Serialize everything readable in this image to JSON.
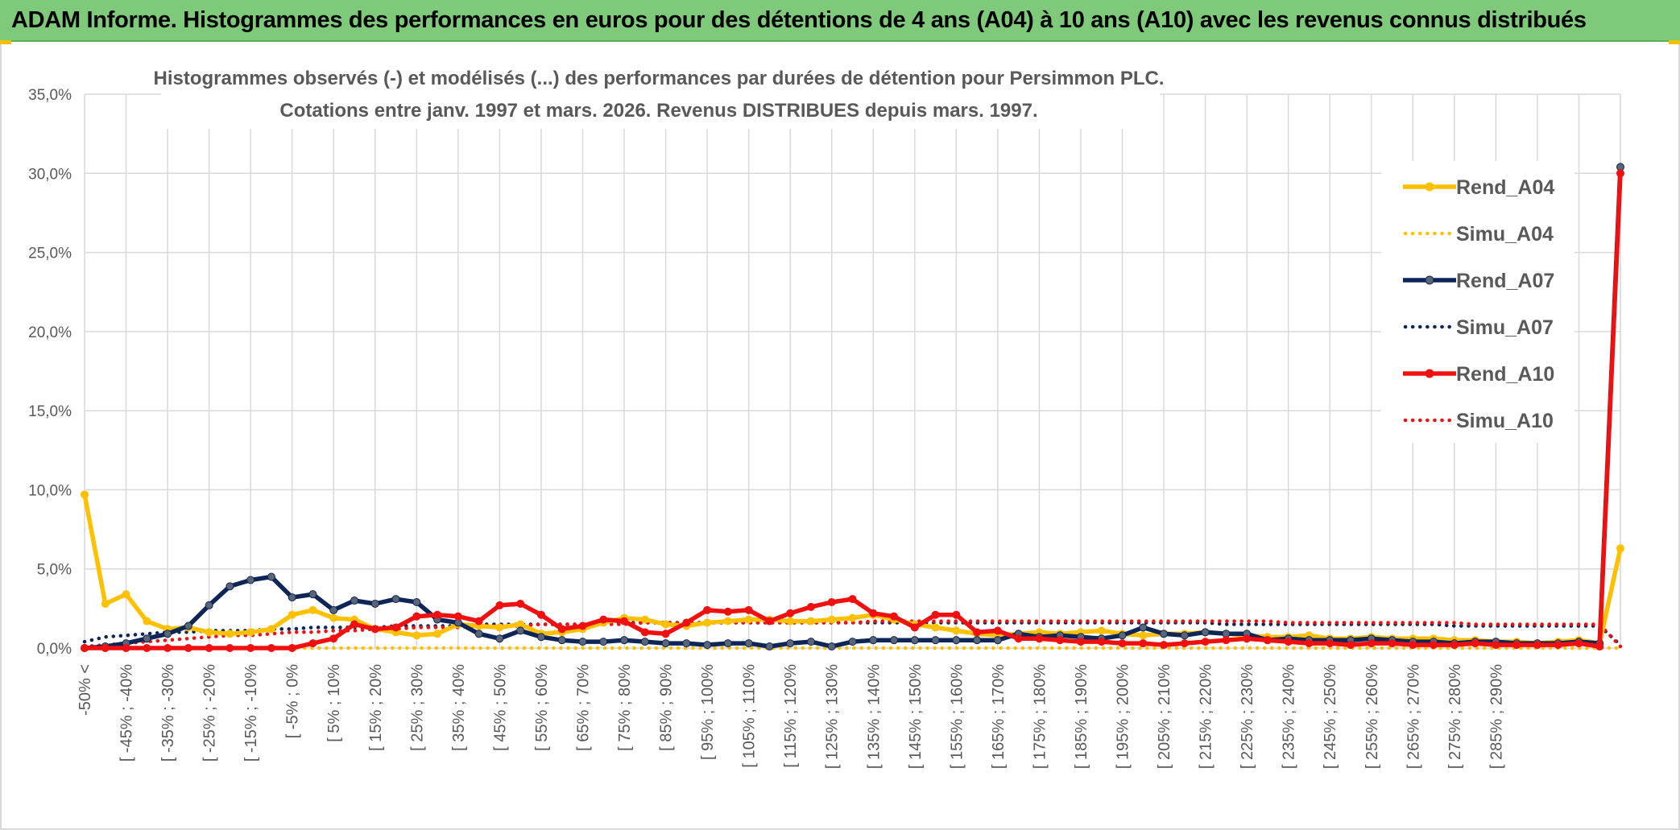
{
  "header": {
    "title": "ADAM Informe. Histogrammes des performances en euros pour des détentions de 4 ans (A04) à 10 ans (A10) avec les revenus connus distribués"
  },
  "colors": {
    "header_bg": "#7ec97a",
    "A04": "#ffc000",
    "A07": "#0d2557",
    "A07_marker": "#5a6678",
    "A10": "#f01010",
    "grid": "#d9d9d9",
    "text": "#595959"
  },
  "chart_data": {
    "type": "line",
    "title_line1": "Histogrammes observés (-) et modélisés (...) des performances par durées de détention pour Persimmon PLC.",
    "title_line2": "Cotations entre janv. 1997 et mars. 2026. Revenus DISTRIBUES depuis mars. 1997.",
    "ylim": [
      0,
      35
    ],
    "yticks": [
      "0,0%",
      "5,0%",
      "10,0%",
      "15,0%",
      "20,0%",
      "25,0%",
      "30,0%",
      "35,0%"
    ],
    "grid": true,
    "legend_position": "right",
    "x_labels": [
      "-50% <",
      "[ -45% ; -40%",
      "[ -35% ; -30%",
      "[ -25% ; -20%",
      "[ -15% ; -10%",
      "[ -5% ; 0%",
      "[ 5% ; 10%",
      "[ 15% ; 20%",
      "[ 25% ; 30%",
      "[ 35% ; 40%",
      "[ 45% ; 50%",
      "[ 55% ; 60%",
      "[ 65% ; 70%",
      "[ 75% ; 80%",
      "[ 85% ; 90%",
      "[ 95% ; 100%",
      "[ 105% ; 110%",
      "[ 115% ; 120%",
      "[ 125% ; 130%",
      "[ 135% ; 140%",
      "[ 145% ; 150%",
      "[ 155% ; 160%",
      "[ 165% ; 170%",
      "[ 175% ; 180%",
      "[ 185% ; 190%",
      "[ 195% ; 200%",
      "[ 205% ; 210%",
      "[ 215% ; 220%",
      "[ 225% ; 230%",
      "[ 235% ; 240%",
      "[ 245% ; 250%",
      "[ 255% ; 260%",
      "[ 265% ; 270%",
      "[ 275% ; 280%",
      "[ 285% ; 290%"
    ],
    "series": [
      {
        "name": "Rend_A04",
        "style": "solid",
        "color": "#ffc000",
        "values": [
          9.7,
          2.8,
          3.4,
          1.7,
          1.2,
          1.3,
          1.0,
          0.9,
          1.0,
          1.2,
          2.1,
          2.4,
          1.9,
          1.8,
          1.2,
          1.0,
          0.8,
          0.9,
          1.5,
          1.4,
          1.3,
          1.5,
          0.9,
          1.0,
          1.2,
          1.6,
          1.9,
          1.8,
          1.5,
          1.4,
          1.6,
          1.7,
          1.8,
          1.8,
          1.7,
          1.7,
          1.8,
          1.9,
          2.1,
          1.8,
          1.5,
          1.3,
          1.1,
          0.9,
          0.8,
          0.9,
          1.0,
          0.9,
          1.0,
          1.1,
          0.9,
          0.8,
          0.9,
          0.9,
          1.0,
          0.9,
          0.8,
          0.7,
          0.7,
          0.8,
          0.6,
          0.6,
          0.7,
          0.6,
          0.6,
          0.6,
          0.5,
          0.5,
          0.4,
          0.4,
          0.3,
          0.4,
          0.5,
          0.3,
          6.3
        ]
      },
      {
        "name": "Simu_A04",
        "style": "dotted",
        "color": "#ffc000",
        "values": [
          0,
          0,
          0,
          0,
          0,
          0,
          0,
          0,
          0,
          0,
          0,
          0,
          0,
          0,
          0,
          0,
          0,
          0,
          0,
          0,
          0,
          0,
          0,
          0,
          0,
          0,
          0,
          0,
          0,
          0,
          0,
          0,
          0,
          0,
          0,
          0,
          0,
          0,
          0,
          0,
          0,
          0,
          0,
          0,
          0,
          0,
          0,
          0,
          0,
          0,
          0,
          0,
          0,
          0,
          0,
          0,
          0,
          0,
          0,
          0,
          0,
          0,
          0,
          0,
          0,
          0,
          0,
          0,
          0,
          0,
          0,
          0,
          0,
          0,
          0
        ]
      },
      {
        "name": "Rend_A07",
        "style": "solid",
        "color": "#0d2557",
        "values": [
          0.0,
          0.1,
          0.3,
          0.6,
          0.9,
          1.4,
          2.7,
          3.9,
          4.3,
          4.5,
          3.2,
          3.4,
          2.4,
          3.0,
          2.8,
          3.1,
          2.9,
          1.8,
          1.6,
          0.9,
          0.6,
          1.1,
          0.7,
          0.5,
          0.4,
          0.4,
          0.5,
          0.4,
          0.3,
          0.3,
          0.2,
          0.3,
          0.3,
          0.1,
          0.3,
          0.4,
          0.1,
          0.4,
          0.5,
          0.5,
          0.5,
          0.5,
          0.5,
          0.5,
          0.5,
          0.9,
          0.7,
          0.8,
          0.7,
          0.6,
          0.8,
          1.3,
          0.9,
          0.8,
          1.0,
          0.9,
          0.9,
          0.5,
          0.6,
          0.5,
          0.5,
          0.5,
          0.6,
          0.5,
          0.4,
          0.4,
          0.3,
          0.4,
          0.4,
          0.3,
          0.3,
          0.3,
          0.4,
          0.3,
          30.4
        ]
      },
      {
        "name": "Simu_A07",
        "style": "dotted",
        "color": "#0d2557",
        "values": [
          0.4,
          0.7,
          0.8,
          0.9,
          1.0,
          1.0,
          1.1,
          1.1,
          1.1,
          1.2,
          1.2,
          1.3,
          1.3,
          1.3,
          1.3,
          1.4,
          1.4,
          1.4,
          1.4,
          1.5,
          1.5,
          1.5,
          1.5,
          1.5,
          1.5,
          1.6,
          1.6,
          1.6,
          1.6,
          1.6,
          1.6,
          1.6,
          1.6,
          1.6,
          1.6,
          1.6,
          1.6,
          1.6,
          1.6,
          1.6,
          1.6,
          1.6,
          1.6,
          1.6,
          1.6,
          1.6,
          1.6,
          1.6,
          1.6,
          1.6,
          1.6,
          1.6,
          1.6,
          1.6,
          1.6,
          1.5,
          1.5,
          1.5,
          1.5,
          1.5,
          1.5,
          1.5,
          1.5,
          1.5,
          1.5,
          1.5,
          1.4,
          1.4,
          1.4,
          1.4,
          1.4,
          1.4,
          1.4,
          1.4,
          0.2
        ]
      },
      {
        "name": "Rend_A10",
        "style": "solid",
        "color": "#f01010",
        "values": [
          0.0,
          0.0,
          0.0,
          0.0,
          0.0,
          0.0,
          0.0,
          0.0,
          0.0,
          0.0,
          0.0,
          0.3,
          0.6,
          1.5,
          1.2,
          1.3,
          2.0,
          2.1,
          2.0,
          1.7,
          2.7,
          2.8,
          2.1,
          1.2,
          1.4,
          1.8,
          1.7,
          1.0,
          0.9,
          1.6,
          2.4,
          2.3,
          2.4,
          1.7,
          2.2,
          2.6,
          2.9,
          3.1,
          2.2,
          2.0,
          1.3,
          2.1,
          2.1,
          1.0,
          1.1,
          0.6,
          0.6,
          0.5,
          0.4,
          0.4,
          0.3,
          0.3,
          0.2,
          0.3,
          0.4,
          0.5,
          0.6,
          0.5,
          0.4,
          0.3,
          0.3,
          0.2,
          0.3,
          0.3,
          0.2,
          0.2,
          0.2,
          0.3,
          0.2,
          0.2,
          0.2,
          0.2,
          0.3,
          0.1,
          30.0
        ]
      },
      {
        "name": "Simu_A10",
        "style": "dotted",
        "color": "#f01010",
        "values": [
          0.1,
          0.2,
          0.3,
          0.4,
          0.5,
          0.6,
          0.7,
          0.8,
          0.8,
          0.9,
          1.0,
          1.0,
          1.1,
          1.1,
          1.2,
          1.2,
          1.3,
          1.3,
          1.3,
          1.4,
          1.4,
          1.4,
          1.5,
          1.5,
          1.5,
          1.5,
          1.5,
          1.6,
          1.6,
          1.6,
          1.6,
          1.6,
          1.6,
          1.6,
          1.6,
          1.6,
          1.6,
          1.6,
          1.7,
          1.7,
          1.7,
          1.7,
          1.7,
          1.7,
          1.7,
          1.7,
          1.7,
          1.7,
          1.7,
          1.7,
          1.7,
          1.7,
          1.7,
          1.7,
          1.7,
          1.7,
          1.7,
          1.7,
          1.6,
          1.6,
          1.6,
          1.6,
          1.6,
          1.6,
          1.6,
          1.6,
          1.6,
          1.5,
          1.5,
          1.5,
          1.5,
          1.5,
          1.5,
          1.5,
          0.1
        ]
      }
    ]
  }
}
